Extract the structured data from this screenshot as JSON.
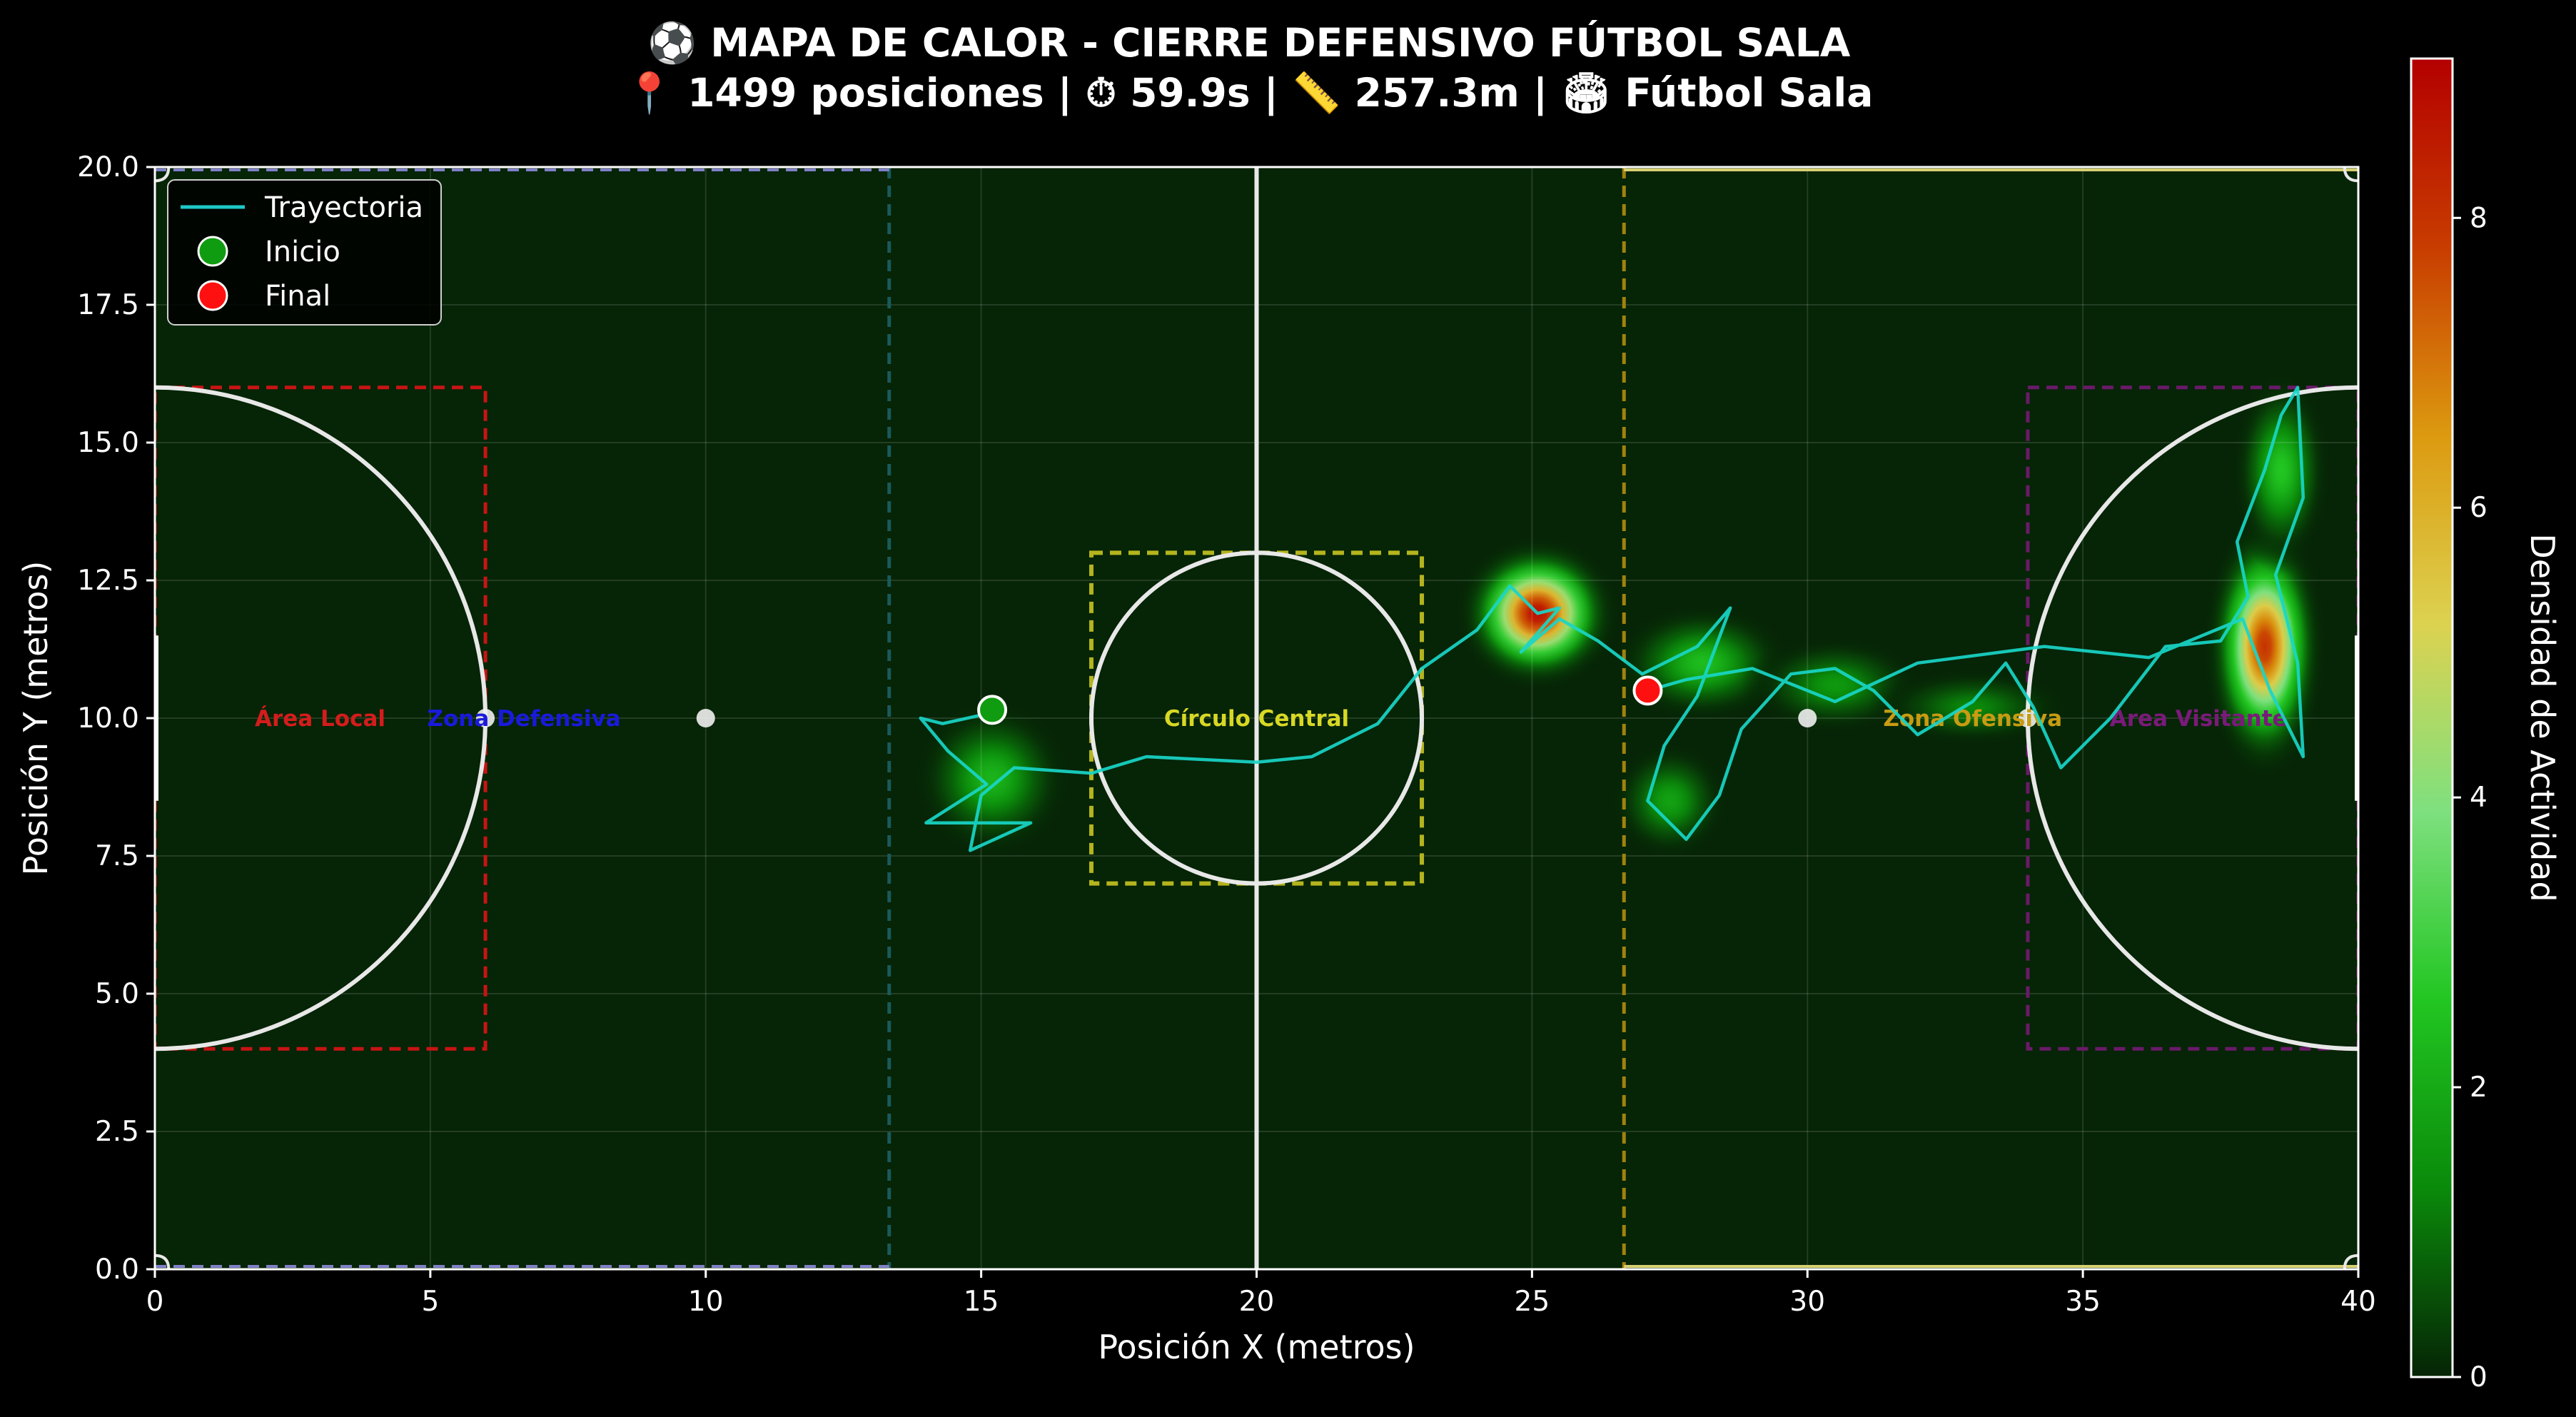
{
  "chart_data": {
    "type": "heatmap",
    "title": "⚽ MAPA DE CALOR - CIERRE DEFENSIVO FÚTBOL SALA",
    "subtitle": "📍 1499 posiciones | ⏱ 59.9s | 📏 257.3m | 🏟 Fútbol Sala",
    "xlabel": "Posición X (metros)",
    "ylabel": "Posición Y (metros)",
    "xlim": [
      0,
      40
    ],
    "ylim": [
      0,
      20
    ],
    "x_ticks": [
      "0",
      "5",
      "10",
      "15",
      "20",
      "25",
      "30",
      "35",
      "40"
    ],
    "y_ticks": [
      "0.0",
      "2.5",
      "5.0",
      "7.5",
      "10.0",
      "12.5",
      "15.0",
      "17.5",
      "20.0"
    ],
    "grid": true,
    "colorbar": {
      "label": "Densidad de Actividad",
      "range": [
        0,
        9.1
      ],
      "ticks": [
        "0",
        "2",
        "4",
        "6",
        "8"
      ],
      "colors": [
        "#062406",
        "#0a8a0a",
        "#22c622",
        "#7ee07e",
        "#dcd250",
        "#dc9a10",
        "#c83c00",
        "#b40000"
      ]
    },
    "hotspots": [
      {
        "x": 25.1,
        "y": 11.9,
        "intensity": 8.8,
        "sx": 0.8,
        "sy": 0.75
      },
      {
        "x": 38.3,
        "y": 11.3,
        "intensity": 8.0,
        "sx": 0.6,
        "sy": 1.3
      },
      {
        "x": 38.6,
        "y": 14.5,
        "intensity": 2.6,
        "sx": 0.5,
        "sy": 1.0
      },
      {
        "x": 15.2,
        "y": 8.9,
        "intensity": 2.2,
        "sx": 0.8,
        "sy": 0.8
      },
      {
        "x": 28.1,
        "y": 11.0,
        "intensity": 2.4,
        "sx": 0.9,
        "sy": 0.6
      },
      {
        "x": 27.5,
        "y": 8.5,
        "intensity": 1.8,
        "sx": 0.6,
        "sy": 0.6
      },
      {
        "x": 30.5,
        "y": 10.6,
        "intensity": 1.6,
        "sx": 0.9,
        "sy": 0.5
      },
      {
        "x": 33.0,
        "y": 10.2,
        "intensity": 1.3,
        "sx": 1.0,
        "sy": 0.4
      }
    ],
    "trajectory": [
      [
        15.2,
        10.1
      ],
      [
        14.3,
        9.9
      ],
      [
        13.9,
        10.0
      ],
      [
        14.4,
        9.4
      ],
      [
        15.1,
        8.8
      ],
      [
        14.0,
        8.1
      ],
      [
        15.9,
        8.1
      ],
      [
        14.8,
        7.6
      ],
      [
        15.0,
        8.6
      ],
      [
        15.6,
        9.1
      ],
      [
        17.0,
        9.0
      ],
      [
        18.0,
        9.3
      ],
      [
        20.0,
        9.2
      ],
      [
        21.0,
        9.3
      ],
      [
        22.2,
        9.9
      ],
      [
        23.0,
        10.9
      ],
      [
        24.0,
        11.6
      ],
      [
        24.6,
        12.4
      ],
      [
        25.1,
        11.9
      ],
      [
        25.5,
        12.0
      ],
      [
        24.8,
        11.2
      ],
      [
        25.5,
        11.8
      ],
      [
        26.2,
        11.4
      ],
      [
        27.0,
        10.8
      ],
      [
        28.0,
        11.3
      ],
      [
        28.6,
        12.0
      ],
      [
        28.0,
        10.4
      ],
      [
        27.4,
        9.5
      ],
      [
        27.1,
        8.5
      ],
      [
        27.8,
        7.8
      ],
      [
        28.4,
        8.6
      ],
      [
        28.8,
        9.8
      ],
      [
        29.7,
        10.8
      ],
      [
        30.5,
        10.9
      ],
      [
        31.2,
        10.5
      ],
      [
        32.0,
        9.7
      ],
      [
        33.0,
        10.3
      ],
      [
        33.6,
        11.0
      ],
      [
        34.1,
        10.2
      ],
      [
        34.6,
        9.1
      ],
      [
        35.5,
        10.0
      ],
      [
        36.5,
        11.3
      ],
      [
        37.5,
        11.4
      ],
      [
        38.0,
        12.2
      ],
      [
        37.8,
        13.2
      ],
      [
        38.3,
        14.5
      ],
      [
        38.6,
        15.5
      ],
      [
        38.9,
        16.0
      ],
      [
        39.0,
        14.0
      ],
      [
        38.5,
        12.6
      ],
      [
        38.9,
        11.0
      ],
      [
        39.0,
        9.3
      ],
      [
        38.4,
        10.5
      ],
      [
        37.9,
        11.8
      ],
      [
        36.2,
        11.1
      ],
      [
        34.3,
        11.3
      ],
      [
        32.0,
        11.0
      ],
      [
        30.5,
        10.3
      ],
      [
        29.0,
        10.9
      ],
      [
        27.8,
        10.7
      ],
      [
        27.1,
        10.5
      ]
    ],
    "start": {
      "x": 15.2,
      "y": 10.15
    },
    "end": {
      "x": 27.1,
      "y": 10.5
    },
    "field_points": [
      {
        "x": 6,
        "y": 10
      },
      {
        "x": 10,
        "y": 10
      },
      {
        "x": 30,
        "y": 10
      },
      {
        "x": 34,
        "y": 10
      }
    ],
    "zones": [
      {
        "label": "Área Local",
        "x": 3.0,
        "y": 10,
        "color": "#d41c1c"
      },
      {
        "label": "Zona Defensiva",
        "x": 6.7,
        "y": 10,
        "color": "#1a1adc"
      },
      {
        "label": "Círculo Central",
        "x": 20.0,
        "y": 10,
        "color": "#d8d825"
      },
      {
        "label": "Zona Ofensiva",
        "x": 33.0,
        "y": 10,
        "color": "#c89b12"
      },
      {
        "label": "Área Visitante",
        "x": 37.1,
        "y": 10,
        "color": "#7a1a7a"
      }
    ],
    "legend": {
      "position": "top-left",
      "items": [
        {
          "label": "Trayectoria",
          "kind": "line",
          "color": "#1ec8c8"
        },
        {
          "label": "Inicio",
          "kind": "marker",
          "color": "#109c10"
        },
        {
          "label": "Final",
          "kind": "marker",
          "color": "#ff1010"
        }
      ]
    },
    "colors": {
      "trajectory": "#19d6c8",
      "field_line": "#e8e8e8",
      "background": "#000000",
      "field_fill": "#062406"
    }
  }
}
